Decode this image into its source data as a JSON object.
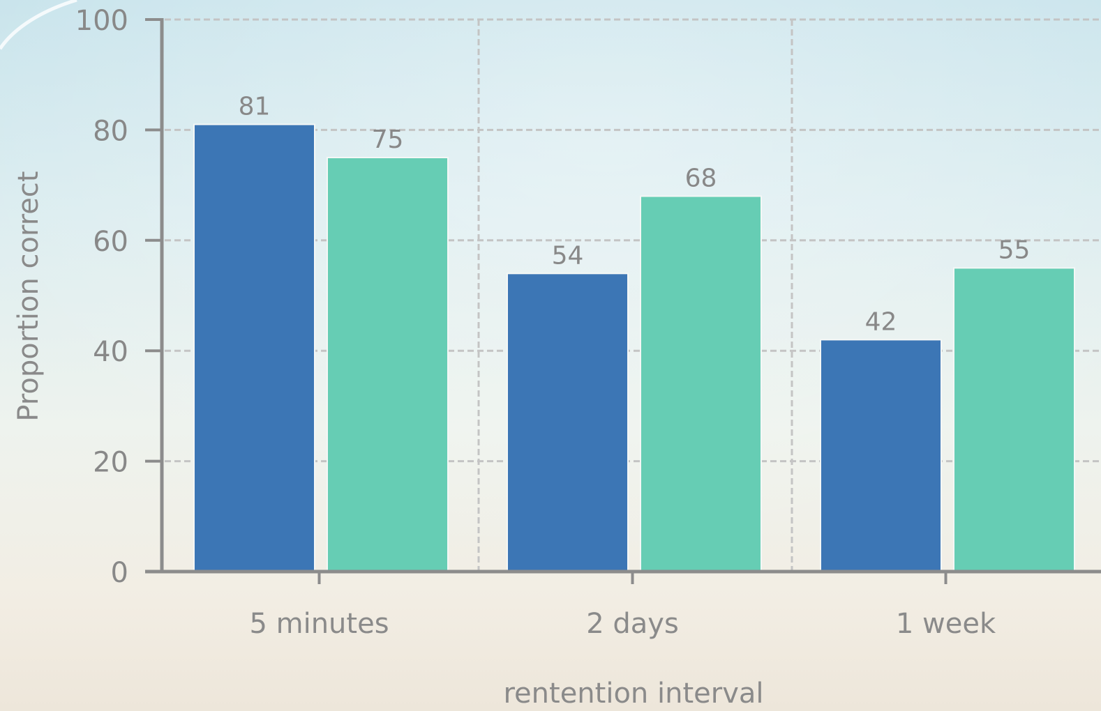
{
  "chart_data": {
    "type": "bar",
    "title": "",
    "xlabel": "rentention interval",
    "ylabel": "Proportion correct",
    "ylim": [
      0,
      100
    ],
    "yticks": [
      0,
      20,
      40,
      60,
      80,
      100
    ],
    "categories": [
      "5 minutes",
      "2 days",
      "1 week"
    ],
    "series": [
      {
        "values": [
          81,
          54,
          42
        ],
        "color": "#3c76b5"
      },
      {
        "values": [
          75,
          68,
          55
        ],
        "color": "#66cdb4"
      }
    ],
    "data_labels": true,
    "grid": true,
    "colors": {
      "axis": "#8c8c8c",
      "grid": "#c4c4c4",
      "text": "#888888",
      "bar_outline": "#f4f7f6"
    }
  }
}
